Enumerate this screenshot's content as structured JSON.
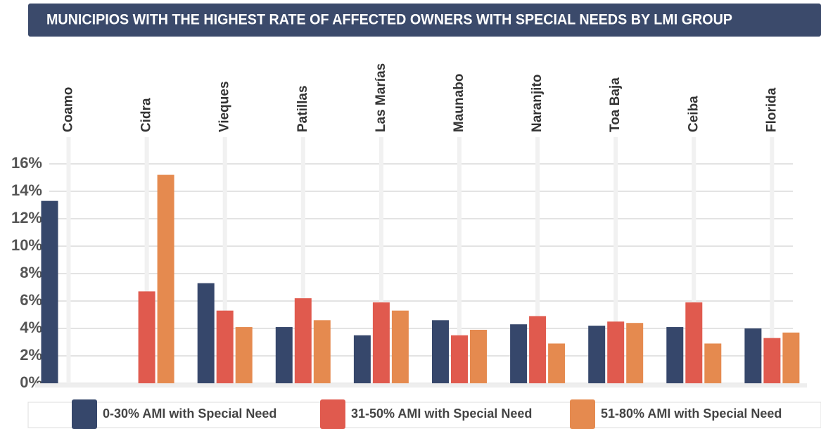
{
  "chart_data": {
    "type": "bar",
    "title": "MUNICIPIOS WITH THE HIGHEST RATE OF AFFECTED OWNERS WITH SPECIAL NEEDS BY LMI GROUP",
    "categories": [
      "Coamo",
      "Cidra",
      "Vieques",
      "Patillas",
      "Las Marías",
      "Maunabo",
      "Naranjito",
      "Toa Baja",
      "Ceiba",
      "Florida"
    ],
    "series": [
      {
        "name": "0-30% AMI with Special Need",
        "color": "#36476b",
        "values": [
          13.3,
          null,
          7.3,
          4.1,
          3.5,
          4.6,
          4.3,
          4.2,
          4.1,
          4.0
        ]
      },
      {
        "name": "31-50% AMI with Special Need",
        "color": "#e05a4e",
        "values": [
          null,
          6.7,
          5.3,
          6.2,
          5.9,
          3.5,
          4.9,
          4.5,
          5.9,
          3.3
        ]
      },
      {
        "name": "51-80% AMI with Special Need",
        "color": "#e58a4f",
        "values": [
          null,
          15.2,
          4.1,
          4.6,
          5.3,
          3.9,
          2.9,
          4.4,
          2.9,
          3.7
        ]
      }
    ],
    "ylim": [
      0,
      16
    ],
    "yticks": [
      {
        "value": 0,
        "label": "0%"
      },
      {
        "value": 2,
        "label": "2%"
      },
      {
        "value": 4,
        "label": "4%"
      },
      {
        "value": 6,
        "label": "6%"
      },
      {
        "value": 8,
        "label": "8%"
      },
      {
        "value": 10,
        "label": "10%"
      },
      {
        "value": 12,
        "label": "12%"
      },
      {
        "value": 14,
        "label": "14%"
      },
      {
        "value": 16,
        "label": "16%"
      }
    ],
    "grid": true,
    "legend": "bottom"
  }
}
